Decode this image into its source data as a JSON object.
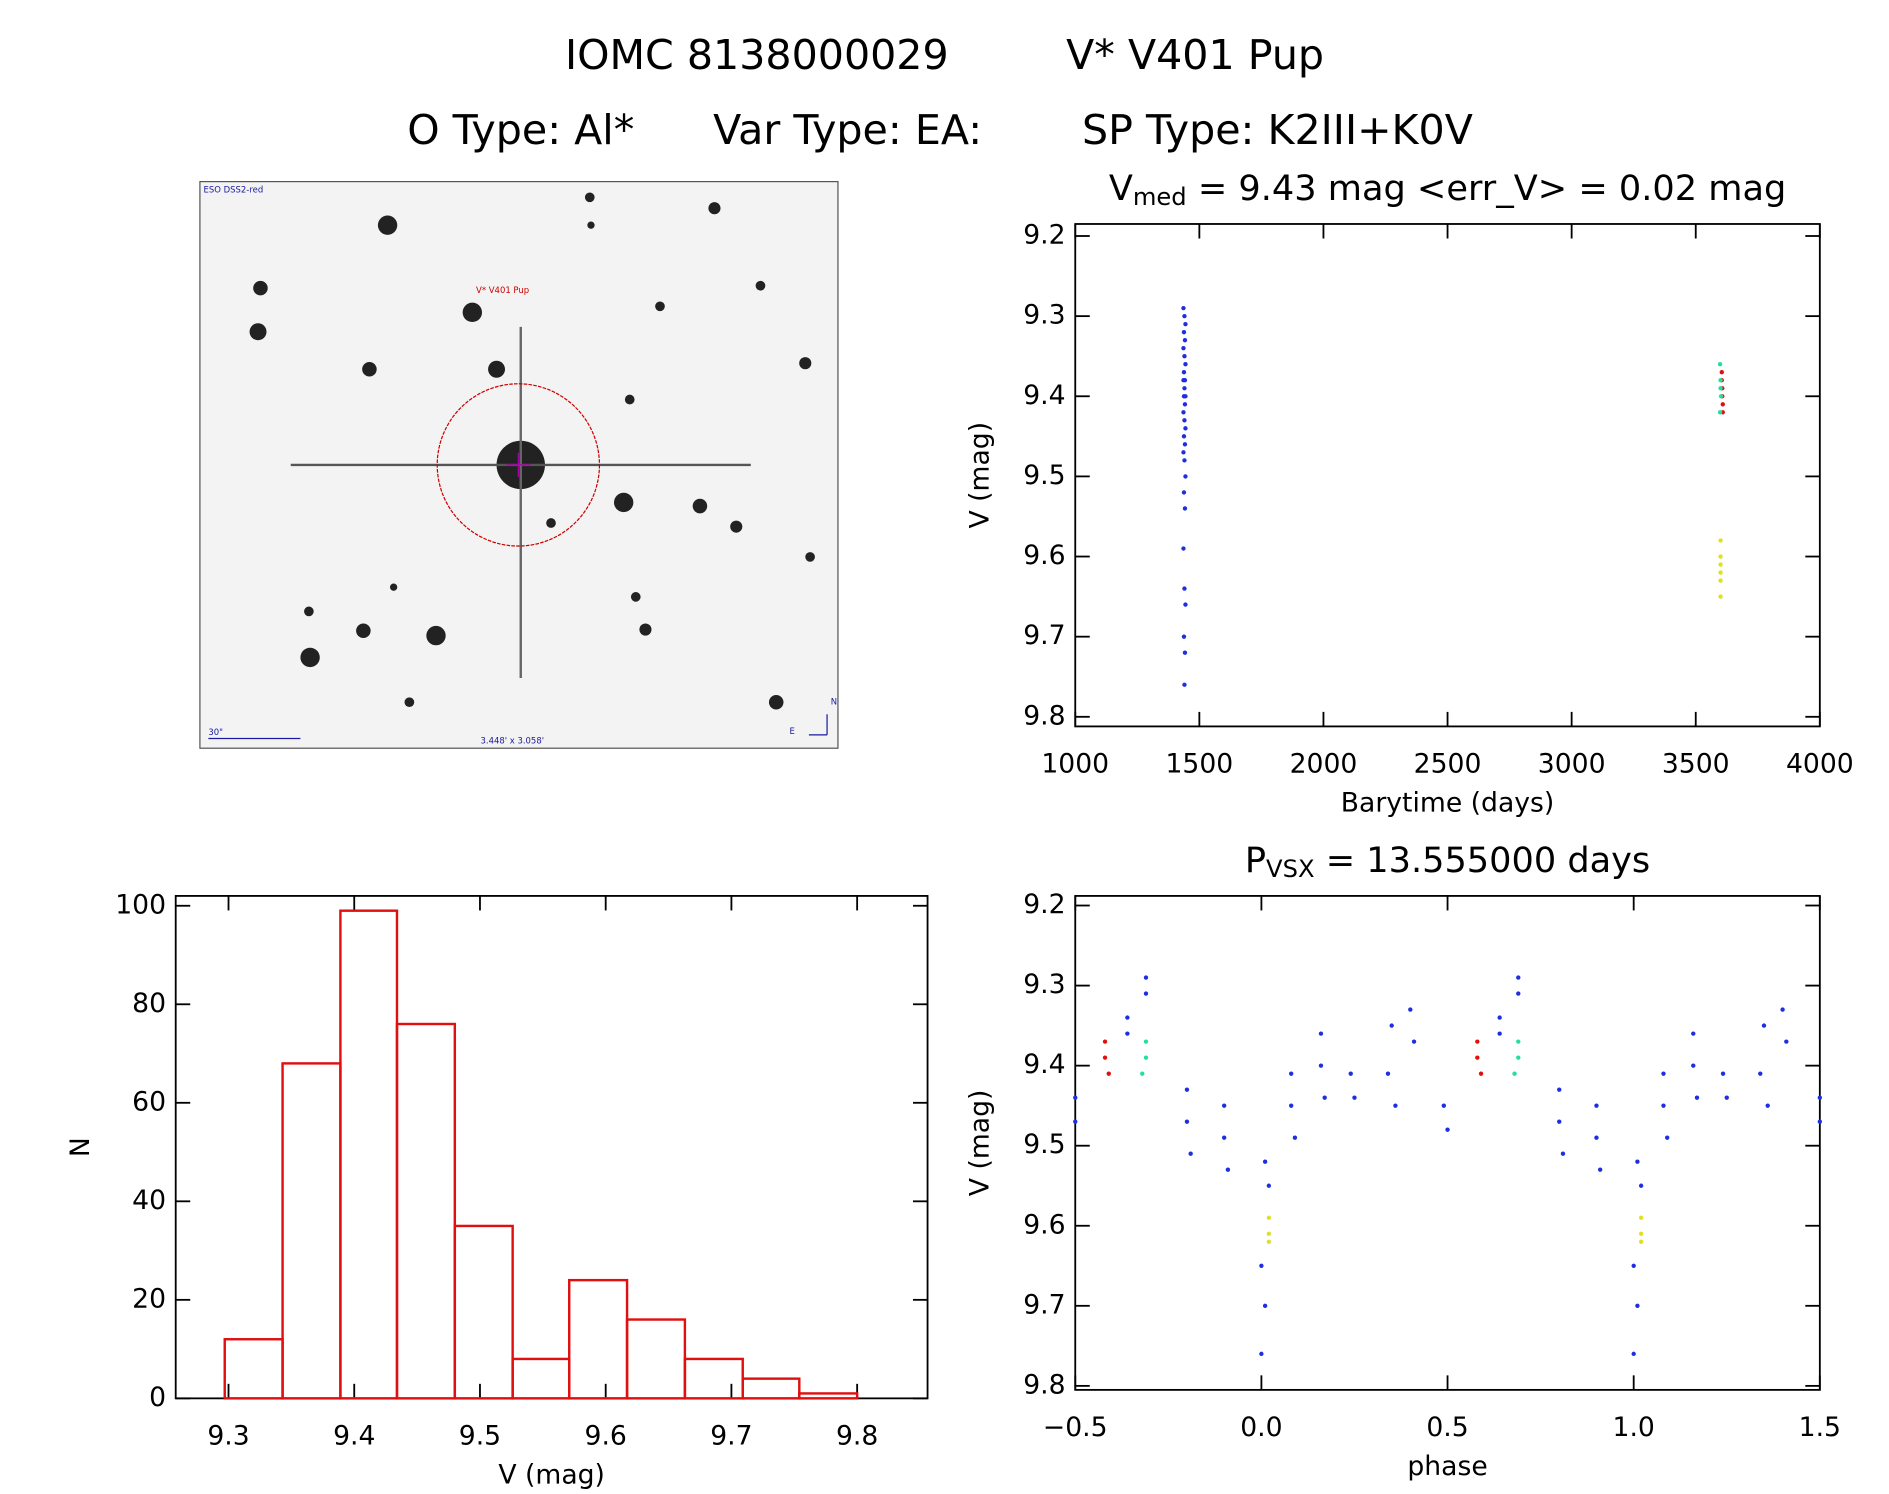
{
  "header": {
    "line1": [
      "IOMC 8138000029",
      "V* V401 Pup"
    ],
    "line2": [
      "O Type: Al*",
      "Var Type: EA:",
      "SP Type: K2III+K0V"
    ]
  },
  "image": {
    "label": "ESO DSS2-red",
    "target": "V* V401 Pup",
    "scale": "30\"",
    "size": "3.448' x 3.058'",
    "north": "N",
    "east": "E"
  },
  "chart_data": [
    {
      "type": "scatter",
      "title_parts": [
        "V",
        "med",
        " = 9.43 mag <err_V> = 0.02 mag"
      ],
      "x_label": "Barytime (days)",
      "y_label": "V (mag)",
      "xlim": [
        1000,
        4000
      ],
      "ylim": [
        9.812,
        9.185
      ],
      "xticks": [
        1000,
        1500,
        2000,
        2500,
        3000,
        3500,
        4000
      ],
      "yticks": [
        9.2,
        9.3,
        9.4,
        9.5,
        9.6,
        9.7,
        9.8
      ],
      "series": [
        {
          "color": "#1f2fe0",
          "x": [
            1436,
            1440,
            1444,
            1438,
            1442,
            1436,
            1440,
            1444,
            1438,
            1442,
            1436,
            1440,
            1444,
            1438,
            1442,
            1436,
            1440,
            1444,
            1438,
            1442,
            1436,
            1440,
            1444,
            1438,
            1442,
            1436,
            1440,
            1444,
            1438,
            1442,
            1440
          ],
          "y": [
            9.29,
            9.3,
            9.31,
            9.32,
            9.33,
            9.34,
            9.35,
            9.36,
            9.37,
            9.38,
            9.38,
            9.39,
            9.4,
            9.4,
            9.41,
            9.42,
            9.43,
            9.44,
            9.45,
            9.46,
            9.47,
            9.48,
            9.5,
            9.52,
            9.54,
            9.59,
            9.64,
            9.66,
            9.7,
            9.72,
            9.76
          ]
        },
        {
          "color": "#e01010",
          "x": [
            3605,
            3607,
            3609,
            3605,
            3607,
            3609
          ],
          "y": [
            9.37,
            9.39,
            9.41,
            9.38,
            9.4,
            9.42
          ]
        },
        {
          "color": "#20e0a0",
          "x": [
            3598,
            3600,
            3602,
            3598,
            3600
          ],
          "y": [
            9.36,
            9.38,
            9.4,
            9.42,
            9.39
          ]
        },
        {
          "color": "#e0e020",
          "x": [
            3600,
            3600,
            3600,
            3600,
            3600,
            3600
          ],
          "y": [
            9.58,
            9.6,
            9.61,
            9.62,
            9.63,
            9.65
          ]
        }
      ]
    },
    {
      "type": "histogram",
      "x_label": "V (mag)",
      "y_label": "N",
      "xlim": [
        9.258,
        9.856
      ],
      "ylim": [
        0,
        102
      ],
      "xticks": [
        9.3,
        9.4,
        9.5,
        9.6,
        9.7,
        9.8
      ],
      "yticks": [
        0,
        20,
        40,
        60,
        80,
        100
      ],
      "bins": [
        9.297,
        9.343,
        9.389,
        9.434,
        9.48,
        9.526,
        9.571,
        9.617,
        9.663,
        9.709,
        9.754,
        9.8
      ],
      "counts": [
        12,
        68,
        99,
        76,
        35,
        8,
        24,
        16,
        8,
        4,
        1
      ],
      "color": "#e01010"
    },
    {
      "type": "scatter",
      "title_parts": [
        "P",
        "VSX",
        " = 13.555000 days"
      ],
      "x_label": "phase",
      "y_label": "V (mag)",
      "xlim": [
        -0.5,
        1.5
      ],
      "ylim": [
        9.805,
        9.188
      ],
      "xticks": [
        {
          "value": -0.5,
          "label": "−0.5"
        },
        {
          "value": 0,
          "label": "0.0"
        },
        0.5,
        {
          "value": 1,
          "label": "1.0"
        },
        1.5
      ],
      "yticks": [
        9.2,
        9.3,
        9.4,
        9.5,
        9.6,
        9.7,
        9.8
      ],
      "series": [
        {
          "color": "#1f2fe0",
          "x": [
            -0.5,
            -0.5,
            -0.36,
            -0.36,
            -0.31,
            -0.31,
            -0.2,
            -0.2,
            -0.19,
            -0.1,
            -0.1,
            -0.09,
            0.01,
            0.02,
            0,
            0.01,
            0,
            0.08,
            0.08,
            0.09,
            0.16,
            0.16,
            0.17,
            0.24,
            0.25,
            0.35,
            0.34,
            0.36,
            0.4,
            0.41,
            0.49,
            0.5,
            0.64,
            0.64,
            0.69,
            0.69,
            0.8,
            0.8,
            0.81,
            0.9,
            0.9,
            0.91,
            1.01,
            1.02,
            1,
            1.01,
            1,
            1.08,
            1.08,
            1.09,
            1.16,
            1.16,
            1.17,
            1.24,
            1.25,
            1.35,
            1.34,
            1.36,
            1.4,
            1.41,
            1.5,
            1.5
          ],
          "y": [
            9.44,
            9.47,
            9.34,
            9.36,
            9.29,
            9.31,
            9.43,
            9.47,
            9.51,
            9.45,
            9.49,
            9.53,
            9.52,
            9.55,
            9.65,
            9.7,
            9.76,
            9.41,
            9.45,
            9.49,
            9.36,
            9.4,
            9.44,
            9.41,
            9.44,
            9.35,
            9.41,
            9.45,
            9.33,
            9.37,
            9.45,
            9.48,
            9.34,
            9.36,
            9.29,
            9.31,
            9.43,
            9.47,
            9.51,
            9.45,
            9.49,
            9.53,
            9.52,
            9.55,
            9.65,
            9.7,
            9.76,
            9.41,
            9.45,
            9.49,
            9.36,
            9.4,
            9.44,
            9.41,
            9.44,
            9.35,
            9.41,
            9.45,
            9.33,
            9.37,
            9.44,
            9.47
          ]
        },
        {
          "color": "#e01010",
          "x": [
            -0.42,
            -0.42,
            -0.41,
            0.58,
            0.58,
            0.59
          ],
          "y": [
            9.37,
            9.39,
            9.41,
            9.37,
            9.39,
            9.41
          ]
        },
        {
          "color": "#20e0a0",
          "x": [
            -0.31,
            -0.31,
            -0.32,
            0.69,
            0.69,
            0.68
          ],
          "y": [
            9.37,
            9.39,
            9.41,
            9.37,
            9.39,
            9.41
          ]
        },
        {
          "color": "#e0e020",
          "x": [
            0.02,
            0.02,
            0.02,
            1.02,
            1.02,
            1.02
          ],
          "y": [
            9.59,
            9.61,
            9.62,
            9.59,
            9.61,
            9.62
          ]
        }
      ]
    }
  ]
}
